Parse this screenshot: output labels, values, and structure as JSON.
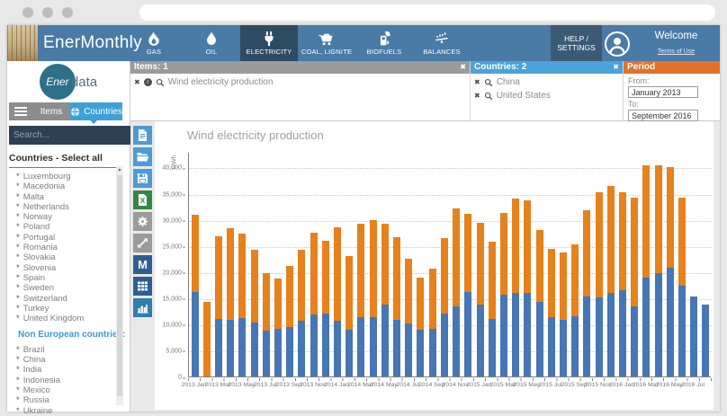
{
  "glyphs": {
    "close": "✖",
    "info": "i",
    "dropdown": "∨",
    "scroll_up": "▲",
    "bullet": "*"
  },
  "header": {
    "app_title": "EnerMonthly",
    "tabs": [
      {
        "label": "GAS",
        "icon": "flame-icon",
        "active": false
      },
      {
        "label": "OIL",
        "icon": "droplet-icon",
        "active": false
      },
      {
        "label": "ELECTRICITY",
        "icon": "plug-icon",
        "active": true
      },
      {
        "label": "COAL, LIGNITE",
        "icon": "minecart-icon",
        "active": false
      },
      {
        "label": "BIOFUELS",
        "icon": "fuel-pump-leaf-icon",
        "active": false
      },
      {
        "label": "BALANCES",
        "icon": "balance-scale-icon",
        "active": false
      }
    ],
    "help_settings": "HELP / SETTINGS",
    "welcome": "Welcome",
    "terms_of_use": "Terms of Use"
  },
  "sidebar": {
    "logo_ener": "Ener",
    "logo_data": "data",
    "tab_items": "Items",
    "tab_countries": "Countries",
    "search_placeholder": "Search...",
    "list_title": "Countries - Select all",
    "european": [
      "Luxembourg",
      "Macedonia",
      "Malta",
      "Netherlands",
      "Norway",
      "Poland",
      "Portugal",
      "Romania",
      "Slovakia",
      "Slovenia",
      "Spain",
      "Sweden",
      "Switzerland",
      "Turkey",
      "United Kingdom"
    ],
    "non_european_title": "Non European countries:",
    "non_european": [
      "Brazil",
      "China",
      "India",
      "Indonesia",
      "Mexico",
      "Russia",
      "Ukraine"
    ]
  },
  "filters": {
    "items": {
      "header": "Items: 1",
      "rows": [
        "Wind electricity production"
      ]
    },
    "countries": {
      "header": "Countries: 2",
      "rows": [
        "China",
        "United States"
      ]
    },
    "period": {
      "header": "Period",
      "from_label": "From:",
      "from_value": "January 2013",
      "to_label": "To:",
      "to_value": "September 2016"
    }
  },
  "toolbar": {
    "monthly_label": "M",
    "excel_label": "X",
    "buttons": [
      "new-document",
      "open-folder",
      "save",
      "export-excel",
      "settings",
      "expand",
      "monthly",
      "data-table",
      "chart-view"
    ]
  },
  "chart_data": {
    "type": "bar",
    "stacked": true,
    "title": "Wind electricity production",
    "xlabel": "",
    "ylabel": "GWh",
    "ylim": [
      0,
      43000
    ],
    "yticks": [
      0,
      5000,
      10000,
      15000,
      20000,
      25000,
      30000,
      35000,
      40000
    ],
    "grid": "dotted-horizontal",
    "legend": "none",
    "categories": [
      "2013 Jan",
      "2013 Feb",
      "2013 Mar",
      "2013 Apr",
      "2013 May",
      "2013 Jun",
      "2013 Jul",
      "2013 Aug",
      "2013 Sep",
      "2013 Oct",
      "2013 Nov",
      "2013 Dec",
      "2014 Jan",
      "2014 Feb",
      "2014 Mar",
      "2014 Apr",
      "2014 May",
      "2014 Jun",
      "2014 Jul",
      "2014 Aug",
      "2014 Sep",
      "2014 Oct",
      "2014 Nov",
      "2014 Dec",
      "2015 Jan",
      "2015 Feb",
      "2015 Mar",
      "2015 Apr",
      "2015 May",
      "2015 Jun",
      "2015 Jul",
      "2015 Aug",
      "2015 Sep",
      "2015 Oct",
      "2015 Nov",
      "2015 Dec",
      "2016 Jan",
      "2016 Feb",
      "2016 Mar",
      "2016 Apr",
      "2016 May",
      "2016 Jun",
      "2016 Jul",
      "2016 Aug"
    ],
    "x_labeled_every": 2,
    "series": [
      {
        "name": "China",
        "color": "#4676b4",
        "values": [
          16200,
          0,
          11000,
          10900,
          11200,
          10400,
          8700,
          9100,
          9400,
          10600,
          11900,
          12000,
          10700,
          9000,
          11400,
          11400,
          13800,
          10900,
          10200,
          8900,
          9100,
          12100,
          13500,
          16200,
          13700,
          11000,
          15700,
          16000,
          16000,
          14200,
          11300,
          10900,
          11500,
          15300,
          15100,
          16000,
          16600,
          13400,
          18900,
          19700,
          20800,
          17300,
          15300,
          13700
        ]
      },
      {
        "name": "United States",
        "color": "#e6811c",
        "values": [
          14800,
          14300,
          15800,
          17400,
          16200,
          13900,
          11100,
          9700,
          11700,
          13700,
          15700,
          13900,
          17800,
          14000,
          17800,
          18600,
          15500,
          15700,
          12300,
          10100,
          11500,
          14400,
          18700,
          15000,
          15800,
          14800,
          15600,
          18000,
          17800,
          13800,
          13200,
          12900,
          13800,
          16500,
          20100,
          20500,
          18700,
          20800,
          21500,
          20700,
          19300,
          17000,
          0,
          0
        ]
      }
    ]
  }
}
